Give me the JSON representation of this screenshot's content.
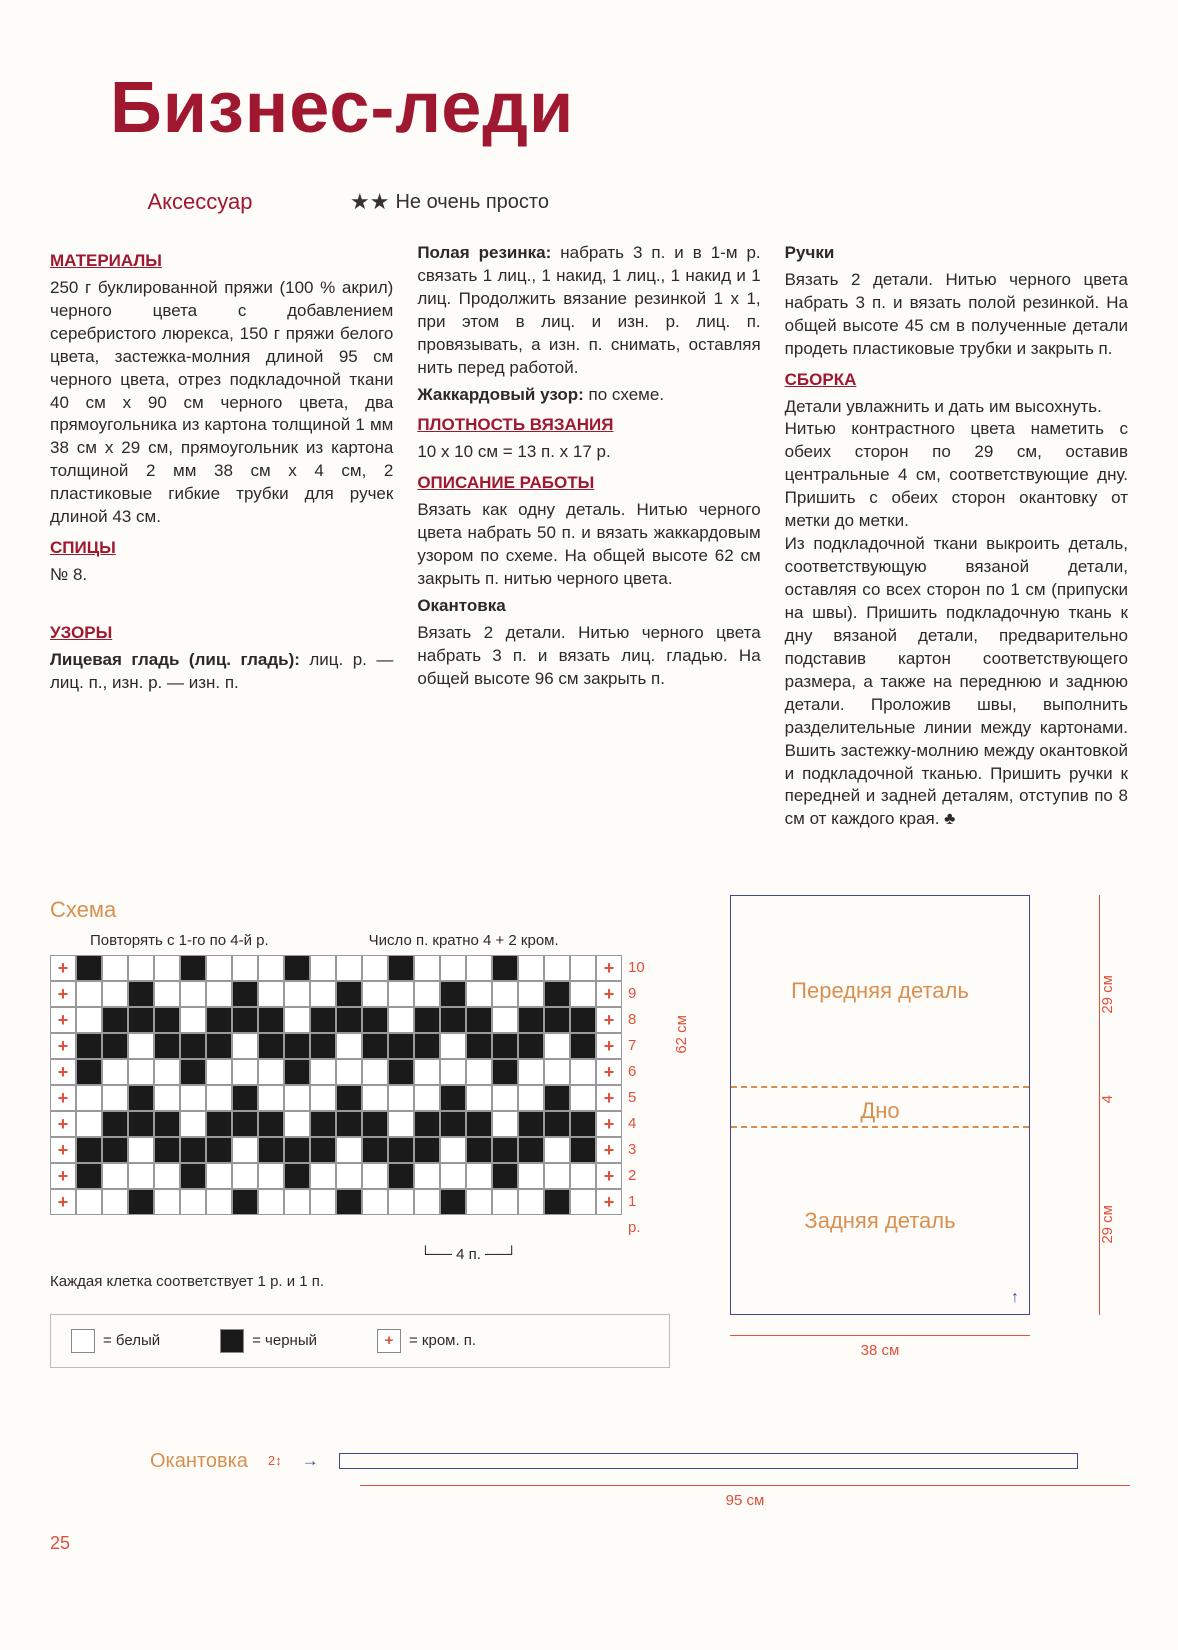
{
  "title": "Бизнес-леди",
  "subtitle_left": "Аксессуар",
  "difficulty_stars": "★★",
  "difficulty_text": "Не очень просто",
  "page_number": "25",
  "headings": {
    "materials": "МАТЕРИАЛЫ",
    "needles": "СПИЦЫ",
    "patterns": "УЗОРЫ",
    "density": "ПЛОТНОСТЬ ВЯЗАНИЯ",
    "description": "ОПИСАНИЕ РАБОТЫ",
    "assembly": "СБОРКА"
  },
  "col1": {
    "materials_text": "250 г буклированной пряжи (100 % акрил) черного цвета с добавлением серебристого люрекса, 150 г пряжи белого цвета, застежка-молния длиной 95 см черного цвета, отрез подкладочной ткани 40 см х 90 см черного цвета, два прямоугольника из картона толщиной 1 мм 38 см х 29 см, прямоугольник из картона толщиной 2 мм 38 см х 4 см, 2 пластиковые гибкие трубки для ручек длиной 43 см.",
    "needles_text": "№ 8.",
    "patterns_bold": "Лицевая гладь (лиц. гладь):",
    "patterns_text": "лиц. р. — лиц. п., изн. р. — изн. п."
  },
  "col2": {
    "polaya_bold": "Полая резинка:",
    "polaya_text": "набрать 3 п. и в 1-м р. связать 1 лиц., 1 накид, 1 лиц., 1 накид и 1 лиц. Продолжить вязание резинкой 1 х 1, при этом в лиц. и изн. р. лиц. п. провязывать, а изн. п. снимать, оставляя нить перед работой.",
    "jacquard_bold": "Жаккардовый узор:",
    "jacquard_text": "по схеме.",
    "density_text": "10 х 10 см = 13 п. х 17 р.",
    "description_text": "Вязать как одну деталь. Нитью черного цвета набрать 50 п. и вязать жаккардовым узором по схеме. На общей высоте 62 см закрыть п. нитью черного цвета.",
    "okantovka_bold": "Окантовка",
    "okantovka_text": "Вязать 2 детали. Нитью черного цвета набрать 3 п. и вязать лиц. гладью. На общей высоте 96 см закрыть п."
  },
  "col3": {
    "handles_bold": "Ручки",
    "handles_text": "Вязать 2 детали. Нитью черного цвета набрать 3 п. и вязать полой резинкой. На общей высоте 45 см в полученные детали продеть пластиковые трубки и закрыть п.",
    "assembly_text": "Детали увлажнить и дать им высохнуть.\nНитью контрастного цвета наметить с обеих сторон по 29 см, оставив центральные 4 см, соответствующие дну. Пришить с обеих сторон окантовку от метки до метки.\nИз подкладочной ткани выкроить деталь, соответствующую вязаной детали, оставляя со всех сторон по 1 см (припуски на швы). Пришить подкладочную ткань к дну вязаной детали, предварительно подставив картон соответствующего размера, а также на переднюю и заднюю детали. Проложив швы, выполнить разделительные линии между картонами. Вшить застежку-молнию между окантовкой и подкладочной тканью. Пришить ручки к передней и задней деталям, отступив по 8 см от каждого края. ♣"
  },
  "chart": {
    "title": "Схема",
    "top_label_1": "Повторять с 1-го по 4-й р.",
    "top_label_2": "Число п. кратно 4 + 2 кром.",
    "foot_label": "Каждая клетка соответствует 1 р. и 1 п.",
    "bracket_label": "4 п.",
    "side_dim": "62 см",
    "rows": [
      {
        "n": "10",
        "cells": "bwwwbwwwbwwwbwwwbwww"
      },
      {
        "n": "9",
        "cells": "wwbwwwbwwwbwwwbwwwbw"
      },
      {
        "n": "8",
        "cells": "wbbbwbbbwbbbwbbbwbbb"
      },
      {
        "n": "7",
        "cells": "bbwbbbwbbbwbbbwbbbwb"
      },
      {
        "n": "6",
        "cells": "bwwwbwwwbwwwbwwwbwww"
      },
      {
        "n": "5",
        "cells": "wwbwwwbwwwbwwwbwwwbw"
      },
      {
        "n": "4",
        "cells": "wbbbwbbbwbbbwbbbwbbb"
      },
      {
        "n": "3",
        "cells": "bbwbbbwbbbwbbbwbbbwb"
      },
      {
        "n": "2",
        "cells": "bwwwbwwwbwwwbwwwbwww"
      },
      {
        "n": "1 р.",
        "cells": "wwbwwwbwwwbwwwbwwwbw"
      }
    ],
    "colors": {
      "w": "#ffffff",
      "b": "#1a1a1a",
      "plus": "#e0503c"
    }
  },
  "legend": {
    "white": "= белый",
    "black": "= черный",
    "edge": "= кром. п."
  },
  "layout": {
    "front": "Передняя деталь",
    "bottom": "Дно",
    "back": "Задняя деталь",
    "dim_29": "29 см",
    "dim_4": "4",
    "dim_38": "38 см"
  },
  "edging": {
    "label": "Окантовка",
    "height": "2↕",
    "width": "95 см"
  },
  "colors": {
    "title": "#a01830",
    "accent": "#d89050",
    "dim": "#e0503c",
    "line": "#3a4a8a"
  }
}
